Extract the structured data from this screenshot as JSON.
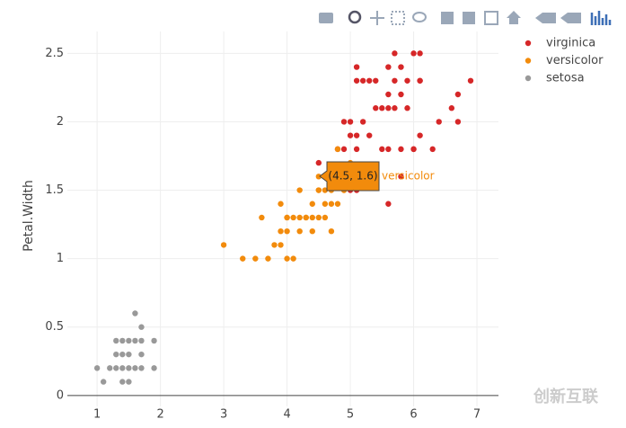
{
  "chart_data": {
    "type": "scatter",
    "y_label": "Petal.Width",
    "xlim": [
      0.53,
      7.34
    ],
    "ylim": [
      -0.08,
      2.66
    ],
    "xticks": [
      1,
      2,
      3,
      4,
      5,
      6,
      7
    ],
    "yticks": [
      0,
      0.5,
      1,
      1.5,
      2,
      2.5
    ],
    "grid": true,
    "legend": "top-right",
    "hover": {
      "text": "(4.5, 1.6)",
      "series": "versicolor"
    },
    "watermark": "创新互联",
    "series": [
      {
        "name": "virginica",
        "color": "#d62728",
        "x": [
          6.0,
          5.1,
          5.9,
          5.6,
          5.8,
          6.6,
          4.5,
          6.3,
          6.1,
          5.3,
          5.5,
          5.0,
          5.1,
          5.3,
          6.7,
          6.9,
          5.0,
          5.7,
          4.9,
          6.7,
          4.9,
          5.7,
          6.0,
          4.8,
          5.6,
          5.8,
          6.1,
          6.4,
          5.6,
          5.1,
          5.6,
          6.1,
          5.6,
          5.5,
          5.4,
          5.1,
          5.9,
          5.7,
          5.2,
          5.0,
          5.2,
          5.4,
          5.1,
          5.8,
          6.1,
          6.0,
          5.8
        ],
        "values": [
          2.5,
          1.9,
          2.1,
          1.8,
          2.2,
          2.1,
          1.7,
          1.8,
          2.5,
          1.9,
          2.1,
          2.0,
          2.4,
          2.3,
          2.2,
          2.3,
          1.5,
          2.3,
          2.0,
          2.0,
          1.8,
          2.1,
          1.8,
          1.8,
          2.1,
          1.6,
          1.9,
          2.0,
          2.2,
          1.5,
          1.4,
          2.3,
          2.4,
          1.8,
          2.1,
          2.3,
          2.3,
          2.5,
          2.3,
          1.9,
          2.0,
          2.3,
          1.8,
          2.4,
          2.3,
          1.8,
          1.8
        ]
      },
      {
        "name": "versicolor",
        "color": "#f28b0c",
        "x": [
          4.7,
          4.5,
          4.9,
          4.0,
          4.6,
          4.5,
          4.7,
          3.3,
          4.6,
          3.9,
          3.5,
          4.2,
          4.0,
          4.4,
          4.1,
          3.9,
          4.8,
          4.7,
          4.3,
          4.8,
          5.0,
          3.8,
          3.7,
          3.9,
          5.1,
          4.5,
          4.7,
          4.4,
          4.1,
          4.4,
          4.6,
          4.0,
          4.2,
          4.2,
          3.0,
          3.6,
          4.9,
          4.3,
          4.5,
          4.0
        ],
        "values": [
          1.4,
          1.5,
          1.5,
          1.3,
          1.5,
          1.3,
          1.6,
          1.0,
          1.3,
          1.4,
          1.0,
          1.5,
          1.0,
          1.4,
          1.0,
          1.1,
          1.8,
          1.2,
          1.3,
          1.4,
          1.7,
          1.1,
          1.0,
          1.2,
          1.6,
          1.6,
          1.5,
          1.3,
          1.3,
          1.2,
          1.4,
          1.2,
          1.3,
          1.2,
          1.1,
          1.3,
          1.5,
          1.3,
          1.5,
          1.3
        ]
      },
      {
        "name": "setosa",
        "color": "#999999",
        "x": [
          1.0,
          1.1,
          1.2,
          1.3,
          1.3,
          1.3,
          1.4,
          1.4,
          1.4,
          1.4,
          1.5,
          1.5,
          1.5,
          1.5,
          1.6,
          1.6,
          1.6,
          1.7,
          1.7,
          1.7,
          1.7,
          1.9,
          1.9
        ],
        "values": [
          0.2,
          0.1,
          0.2,
          0.2,
          0.3,
          0.4,
          0.1,
          0.2,
          0.3,
          0.4,
          0.1,
          0.2,
          0.3,
          0.4,
          0.2,
          0.4,
          0.6,
          0.2,
          0.3,
          0.4,
          0.5,
          0.2,
          0.4
        ]
      }
    ]
  }
}
